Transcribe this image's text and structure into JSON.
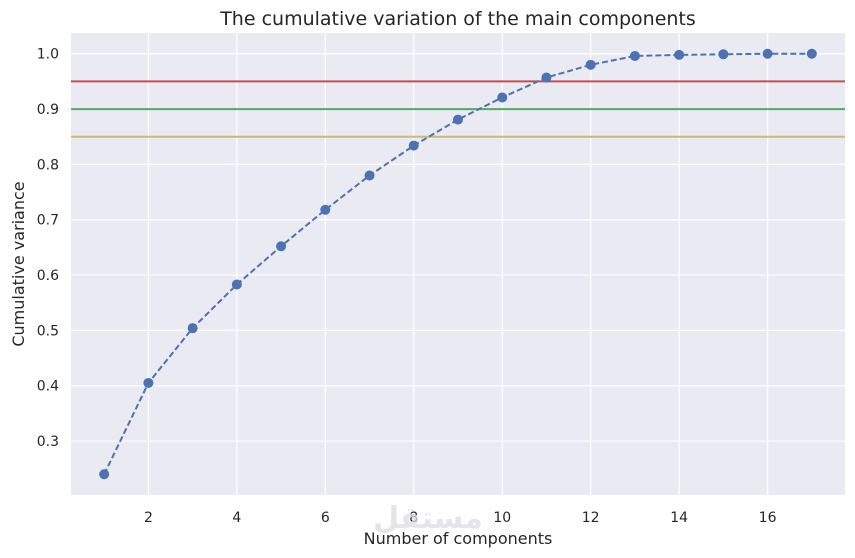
{
  "chart_data": {
    "type": "line",
    "title": "The cumulative variation of the main components",
    "xlabel": "Number of components",
    "ylabel": "Cumulative variance",
    "xlim": [
      0.25,
      17.75
    ],
    "ylim": [
      0.2025,
      1.0375
    ],
    "x_ticks": [
      2,
      4,
      6,
      8,
      10,
      12,
      14,
      16
    ],
    "y_ticks": [
      0.3,
      0.4,
      0.5,
      0.6,
      0.7,
      0.8,
      0.9,
      1.0
    ],
    "grid": true,
    "legend": "none",
    "series": [
      {
        "x": [
          1,
          2,
          3,
          4,
          5,
          6,
          7,
          8,
          9,
          10,
          11,
          12,
          13,
          14,
          15,
          16,
          17
        ],
        "values": [
          0.24,
          0.405,
          0.504,
          0.583,
          0.652,
          0.718,
          0.78,
          0.834,
          0.881,
          0.921,
          0.957,
          0.98,
          0.996,
          0.998,
          0.999,
          1.0,
          1.0
        ],
        "color": "#4c72b0",
        "line_style": "dashed",
        "marker": "circle"
      }
    ],
    "reference_lines": [
      {
        "y": 0.95,
        "color": "#c44e52"
      },
      {
        "y": 0.9,
        "color": "#55a868"
      },
      {
        "y": 0.85,
        "color": "#ccb974"
      }
    ],
    "background_color": "#eaeaf2",
    "grid_color": "#ffffff"
  },
  "watermark": {
    "text": "مستقل"
  }
}
